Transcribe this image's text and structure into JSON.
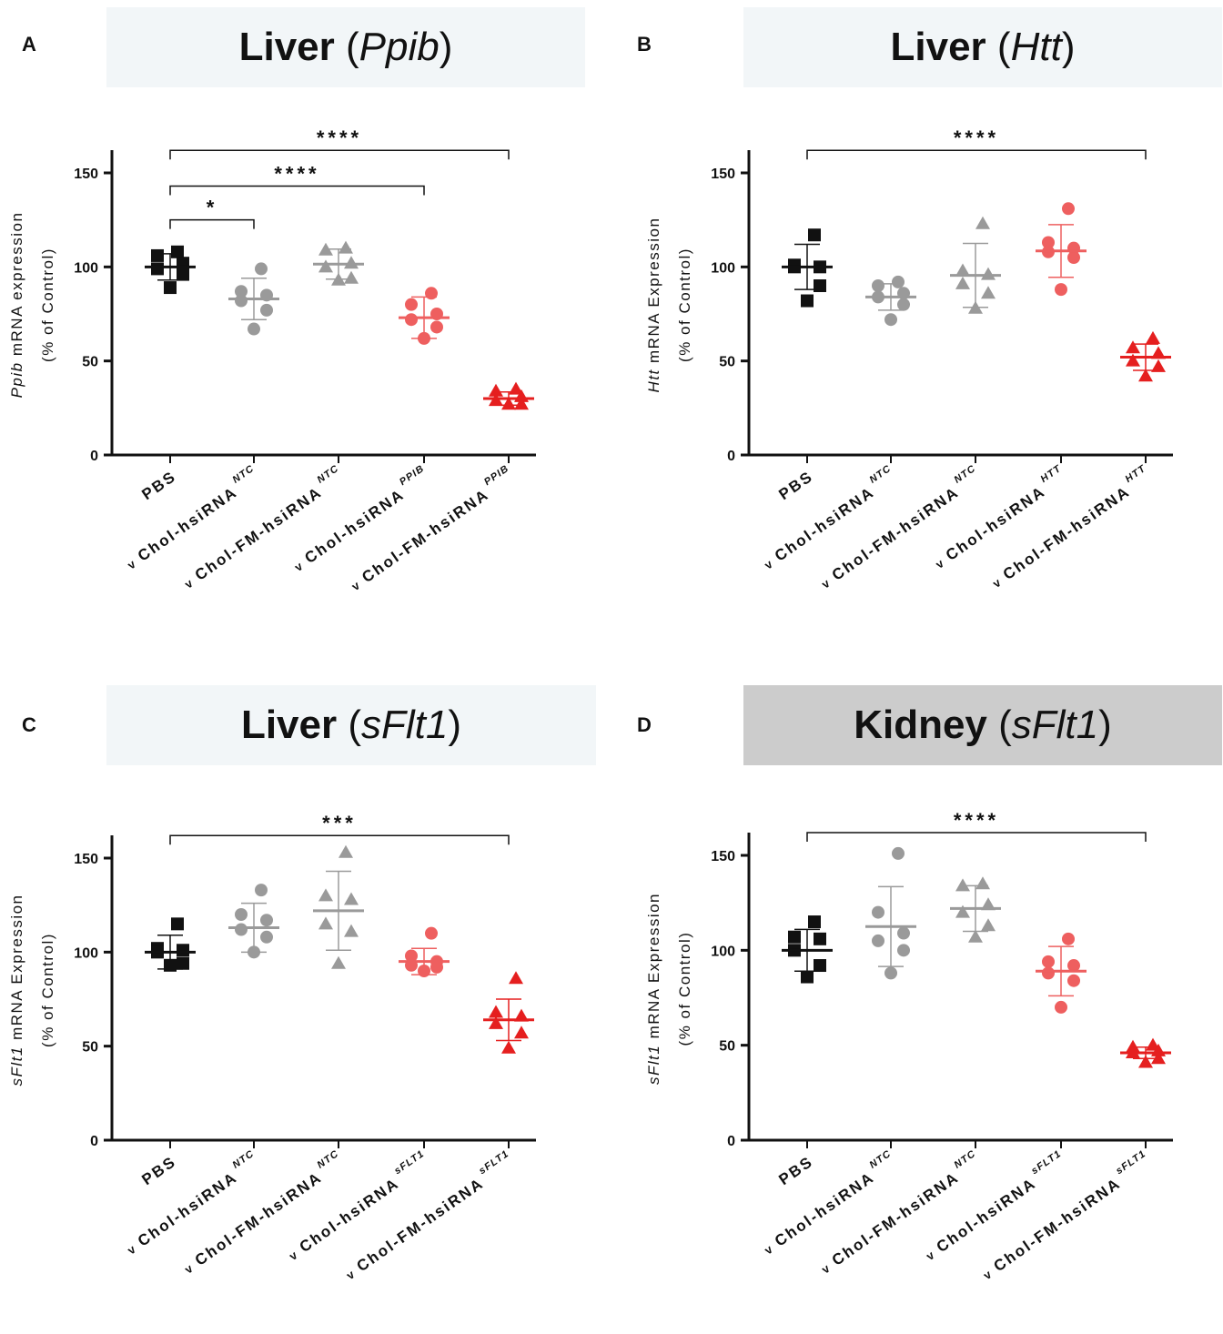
{
  "colors": {
    "black": "#111111",
    "gray": "#9a9a9a",
    "salmon": "#ee5f5f",
    "red": "#e51f1f",
    "title_bg_light": "#f2f6f8",
    "title_bg_gray": "#cccccc"
  },
  "chart_data": [
    {
      "panel": "A",
      "type": "scatter",
      "title": "Liver",
      "title_gene": "Ppib",
      "title_bg": "light",
      "ylabel_gene": "Ppib",
      "ylabel_rest": " mRNA expression",
      "ylabel_line2": "(% of Control)",
      "ylim": [
        0,
        150
      ],
      "yticks": [
        0,
        50,
        100,
        150
      ],
      "categories": [
        {
          "name": "PBS",
          "prefix": "",
          "sup": ""
        },
        {
          "name": "Chol-hsiRNA",
          "prefix": "v",
          "sup": "NTC"
        },
        {
          "name": "Chol-FM-hsiRNA",
          "prefix": "v",
          "sup": "NTC"
        },
        {
          "name": "Chol-hsiRNA",
          "prefix": "v",
          "sup": "PPIB"
        },
        {
          "name": "Chol-FM-hsiRNA",
          "prefix": "v",
          "sup": "PPIB"
        }
      ],
      "groups": [
        {
          "marker": "square",
          "color": "black",
          "mean": 100,
          "sd": 7,
          "points": [
            108,
            106,
            102,
            99,
            96,
            89
          ]
        },
        {
          "marker": "circle",
          "color": "gray",
          "mean": 83,
          "sd": 11,
          "points": [
            99,
            87,
            85,
            82,
            77,
            67
          ]
        },
        {
          "marker": "triangle",
          "color": "gray",
          "mean": 101.5,
          "sd": 8,
          "points": [
            110,
            109,
            102,
            100,
            94,
            93
          ]
        },
        {
          "marker": "circle",
          "color": "salmon",
          "mean": 73,
          "sd": 11,
          "points": [
            86,
            80,
            75,
            72,
            68,
            62
          ]
        },
        {
          "marker": "triangle",
          "color": "red",
          "mean": 30,
          "sd": 3.5,
          "points": [
            35,
            34,
            31,
            29,
            27,
            27
          ]
        }
      ],
      "sig": [
        {
          "from": 0,
          "to": 1,
          "label": "*",
          "y": 125
        },
        {
          "from": 0,
          "to": 3,
          "label": "****",
          "y": 143
        },
        {
          "from": 0,
          "to": 4,
          "label": "****",
          "y": 162
        }
      ]
    },
    {
      "panel": "B",
      "type": "scatter",
      "title": "Liver",
      "title_gene": "Htt",
      "title_bg": "light",
      "ylabel_gene": "Htt",
      "ylabel_rest": " mRNA Expression",
      "ylabel_line2": "(% of Control)",
      "ylim": [
        0,
        150
      ],
      "yticks": [
        0,
        50,
        100,
        150
      ],
      "categories": [
        {
          "name": "PBS",
          "prefix": "",
          "sup": ""
        },
        {
          "name": "Chol-hsiRNA",
          "prefix": "v",
          "sup": "NTC"
        },
        {
          "name": "Chol-FM-hsiRNA",
          "prefix": "v",
          "sup": "NTC"
        },
        {
          "name": "Chol-hsiRNA",
          "prefix": "v",
          "sup": "HTT"
        },
        {
          "name": "Chol-FM-hsiRNA",
          "prefix": "v",
          "sup": "HTT"
        }
      ],
      "groups": [
        {
          "marker": "square",
          "color": "black",
          "mean": 100,
          "sd": 12,
          "points": [
            117,
            101,
            100,
            100,
            90,
            82
          ]
        },
        {
          "marker": "circle",
          "color": "gray",
          "mean": 84,
          "sd": 7,
          "points": [
            92,
            90,
            86,
            84,
            80,
            72
          ]
        },
        {
          "marker": "triangle",
          "color": "gray",
          "mean": 95.5,
          "sd": 17,
          "points": [
            123,
            98,
            96,
            91,
            86,
            78
          ]
        },
        {
          "marker": "circle",
          "color": "salmon",
          "mean": 108.5,
          "sd": 14,
          "points": [
            131,
            113,
            110,
            108,
            105,
            88
          ]
        },
        {
          "marker": "triangle",
          "color": "red",
          "mean": 52,
          "sd": 7,
          "points": [
            62,
            57,
            54,
            50,
            47,
            42
          ]
        }
      ],
      "sig": [
        {
          "from": 0,
          "to": 4,
          "label": "****",
          "y": 162
        }
      ]
    },
    {
      "panel": "C",
      "type": "scatter",
      "title": "Liver",
      "title_gene": "sFlt1",
      "title_bg": "light",
      "ylabel_gene": "sFlt1",
      "ylabel_rest": " mRNA Expression",
      "ylabel_line2": "(% of Control)",
      "ylim": [
        0,
        150
      ],
      "yticks": [
        0,
        50,
        100,
        150
      ],
      "categories": [
        {
          "name": "PBS",
          "prefix": "",
          "sup": ""
        },
        {
          "name": "Chol-hsiRNA",
          "prefix": "v",
          "sup": "NTC"
        },
        {
          "name": "Chol-FM-hsiRNA",
          "prefix": "v",
          "sup": "NTC"
        },
        {
          "name": "Chol-hsiRNA",
          "prefix": "v",
          "sup": "sFLT1"
        },
        {
          "name": "Chol-FM-hsiRNA",
          "prefix": "v",
          "sup": "sFLT1"
        }
      ],
      "groups": [
        {
          "marker": "square",
          "color": "black",
          "mean": 100,
          "sd": 9,
          "points": [
            115,
            102,
            101,
            100,
            94,
            93
          ]
        },
        {
          "marker": "circle",
          "color": "gray",
          "mean": 113,
          "sd": 13,
          "points": [
            133,
            120,
            117,
            112,
            108,
            100
          ]
        },
        {
          "marker": "triangle",
          "color": "gray",
          "mean": 122,
          "sd": 21,
          "points": [
            153,
            130,
            128,
            115,
            111,
            94
          ]
        },
        {
          "marker": "circle",
          "color": "salmon",
          "mean": 95,
          "sd": 7,
          "points": [
            110,
            98,
            95,
            93,
            92,
            90
          ]
        },
        {
          "marker": "triangle",
          "color": "red",
          "mean": 64,
          "sd": 11,
          "points": [
            86,
            68,
            66,
            62,
            57,
            49
          ]
        }
      ],
      "sig": [
        {
          "from": 0,
          "to": 4,
          "label": "***",
          "y": 162
        }
      ]
    },
    {
      "panel": "D",
      "type": "scatter",
      "title": "Kidney",
      "title_gene": "sFlt1",
      "title_bg": "gray",
      "ylabel_gene": "sFlt1",
      "ylabel_rest": " mRNA Expression",
      "ylabel_line2": "(% of Control)",
      "ylim": [
        0,
        150
      ],
      "yticks": [
        0,
        50,
        100,
        150
      ],
      "categories": [
        {
          "name": "PBS",
          "prefix": "",
          "sup": ""
        },
        {
          "name": "Chol-hsiRNA",
          "prefix": "v",
          "sup": "NTC"
        },
        {
          "name": "Chol-FM-hsiRNA",
          "prefix": "v",
          "sup": "NTC"
        },
        {
          "name": "Chol-hsiRNA",
          "prefix": "v",
          "sup": "sFLT1"
        },
        {
          "name": "Chol-FM-hsiRNA",
          "prefix": "v",
          "sup": "sFLT1"
        }
      ],
      "groups": [
        {
          "marker": "square",
          "color": "black",
          "mean": 100,
          "sd": 11,
          "points": [
            115,
            107,
            106,
            100,
            92,
            86
          ]
        },
        {
          "marker": "circle",
          "color": "gray",
          "mean": 112.5,
          "sd": 21,
          "points": [
            151,
            120,
            109,
            105,
            100,
            88
          ]
        },
        {
          "marker": "triangle",
          "color": "gray",
          "mean": 122,
          "sd": 12,
          "points": [
            135,
            134,
            124,
            120,
            113,
            107
          ]
        },
        {
          "marker": "circle",
          "color": "salmon",
          "mean": 89,
          "sd": 13,
          "points": [
            106,
            94,
            92,
            88,
            84,
            70
          ]
        },
        {
          "marker": "triangle",
          "color": "red",
          "mean": 46,
          "sd": 3,
          "points": [
            50,
            49,
            47,
            46,
            43,
            41
          ]
        }
      ],
      "sig": [
        {
          "from": 0,
          "to": 4,
          "label": "****",
          "y": 162
        }
      ]
    }
  ]
}
